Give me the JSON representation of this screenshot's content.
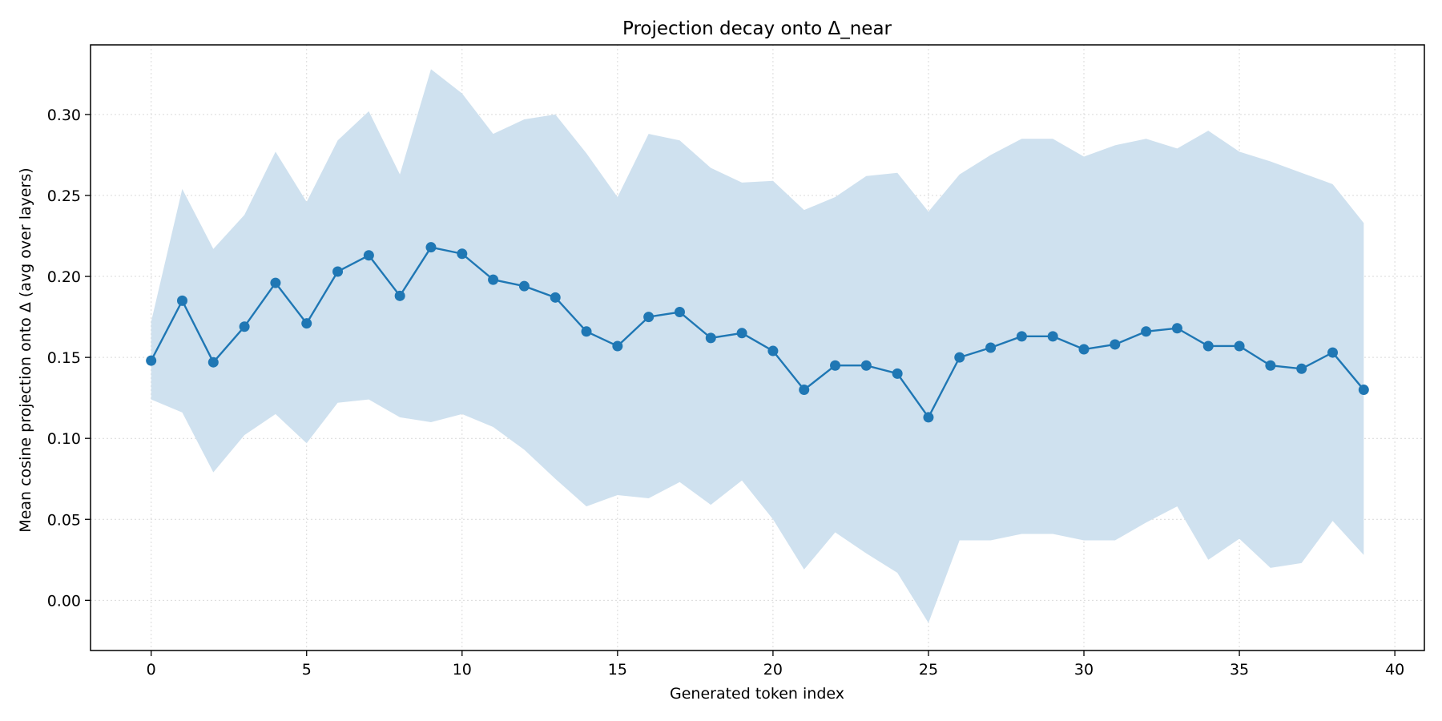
{
  "chart_data": {
    "type": "line",
    "title": "Projection decay onto Δ_near",
    "xlabel": "Generated token index",
    "ylabel": "Mean cosine projection onto Δ (avg over layers)",
    "xlim": [
      -1.95,
      40.95
    ],
    "ylim": [
      -0.031,
      0.343
    ],
    "x_ticks": [
      0,
      5,
      10,
      15,
      20,
      25,
      30,
      35,
      40
    ],
    "y_ticks": [
      0.0,
      0.05,
      0.1,
      0.15,
      0.2,
      0.25,
      0.3
    ],
    "y_tick_labels": [
      "0.00",
      "0.05",
      "0.10",
      "0.15",
      "0.20",
      "0.25",
      "0.30"
    ],
    "grid": true,
    "color": "#1f77b4",
    "band_color": "#cfe1ef",
    "x": [
      0,
      1,
      2,
      3,
      4,
      5,
      6,
      7,
      8,
      9,
      10,
      11,
      12,
      13,
      14,
      15,
      16,
      17,
      18,
      19,
      20,
      21,
      22,
      23,
      24,
      25,
      26,
      27,
      28,
      29,
      30,
      31,
      32,
      33,
      34,
      35,
      36,
      37,
      38,
      39
    ],
    "series": [
      {
        "values": [
          0.148,
          0.185,
          0.147,
          0.169,
          0.196,
          0.171,
          0.203,
          0.213,
          0.188,
          0.218,
          0.214,
          0.198,
          0.194,
          0.187,
          0.166,
          0.157,
          0.175,
          0.178,
          0.162,
          0.165,
          0.154,
          0.13,
          0.145,
          0.145,
          0.14,
          0.113,
          0.15,
          0.156,
          0.163,
          0.163,
          0.155,
          0.158,
          0.166,
          0.168,
          0.157,
          0.157,
          0.145,
          0.143,
          0.153,
          0.13
        ],
        "band_upper": [
          0.172,
          0.254,
          0.217,
          0.238,
          0.277,
          0.246,
          0.284,
          0.302,
          0.263,
          0.328,
          0.313,
          0.288,
          0.297,
          0.3,
          0.276,
          0.249,
          0.288,
          0.284,
          0.267,
          0.258,
          0.259,
          0.241,
          0.249,
          0.262,
          0.264,
          0.24,
          0.263,
          0.275,
          0.285,
          0.285,
          0.274,
          0.281,
          0.285,
          0.279,
          0.29,
          0.277,
          0.271,
          0.264,
          0.257,
          0.233
        ],
        "band_lower": [
          0.124,
          0.116,
          0.079,
          0.102,
          0.115,
          0.097,
          0.122,
          0.124,
          0.113,
          0.11,
          0.115,
          0.107,
          0.093,
          0.075,
          0.058,
          0.065,
          0.063,
          0.073,
          0.059,
          0.074,
          0.05,
          0.019,
          0.042,
          0.029,
          0.017,
          -0.014,
          0.037,
          0.037,
          0.041,
          0.041,
          0.037,
          0.037,
          0.048,
          0.058,
          0.025,
          0.038,
          0.02,
          0.023,
          0.049,
          0.028
        ]
      }
    ]
  }
}
